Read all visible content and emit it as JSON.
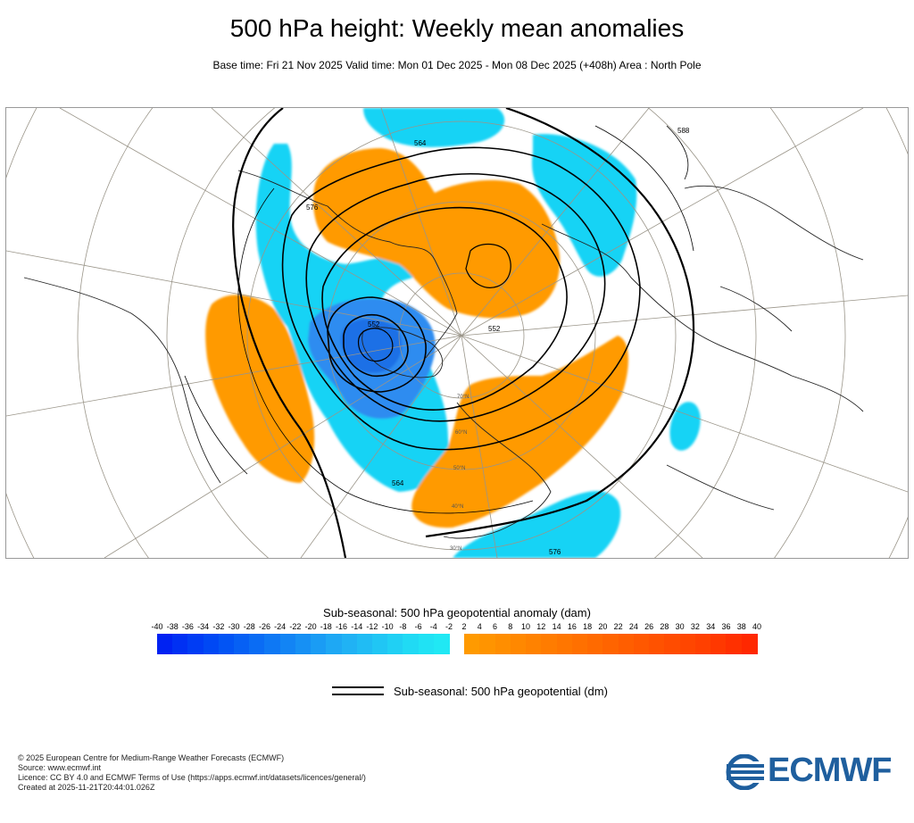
{
  "header": {
    "title": "500 hPa height: Weekly mean anomalies",
    "subtitle": "Base time: Fri 21 Nov 2025 Valid time: Mon 01 Dec 2025 - Mon 08 Dec 2025 (+408h) Area : North Pole"
  },
  "map": {
    "contour_labels": [
      "564",
      "576",
      "588",
      "552",
      "564",
      "576",
      "552"
    ],
    "latitude_labels": [
      "70°N",
      "60°N",
      "50°N",
      "40°N",
      "30°N"
    ],
    "colors": {
      "negative_strong": "#1e6fe6",
      "negative_weak": "#19d3f5",
      "positive_weak": "#ff9a00",
      "positive_strong": "#ee7a10",
      "contour": "#000000",
      "graticule": "#9a9589",
      "coast": "#222222"
    }
  },
  "legend": {
    "colorbar_title": "Sub-seasonal: 500 hPa geopotential anomaly (dam)",
    "ticks": [
      "-40",
      "-38",
      "-36",
      "-34",
      "-32",
      "-30",
      "-28",
      "-26",
      "-24",
      "-22",
      "-20",
      "-18",
      "-16",
      "-14",
      "-12",
      "-10",
      "-8",
      "-6",
      "-4",
      "-2",
      "2",
      "4",
      "6",
      "8",
      "10",
      "12",
      "14",
      "16",
      "18",
      "20",
      "22",
      "24",
      "26",
      "28",
      "30",
      "32",
      "34",
      "36",
      "38",
      "40"
    ],
    "negative_colors": [
      "#0022f2",
      "#0030f3",
      "#003cf4",
      "#0048f4",
      "#0254f4",
      "#0660f4",
      "#0a6cf4",
      "#0e78f4",
      "#1284f4",
      "#1690f4",
      "#1a9cf4",
      "#1ea8f4",
      "#20b2f4",
      "#20bcf4",
      "#20c6f4",
      "#20d0f4",
      "#20daf4",
      "#20e2f4",
      "#20e8f4"
    ],
    "positive_colors": [
      "#ff9a00",
      "#ff9400",
      "#ff8e00",
      "#ff8800",
      "#ff8200",
      "#ff7c00",
      "#ff7600",
      "#ff7000",
      "#ff6a00",
      "#ff6400",
      "#ff5e00",
      "#ff5800",
      "#ff5200",
      "#ff4c00",
      "#ff4600",
      "#ff4000",
      "#ff3800",
      "#ff3000",
      "#ff2800"
    ],
    "line_label": "Sub-seasonal: 500 hPa geopotential (dm)"
  },
  "footer": {
    "lines": [
      "© 2025 European Centre for Medium-Range Weather Forecasts (ECMWF)",
      "Source: www.ecmwf.int",
      "Licence: CC BY 4.0 and ECMWF Terms of Use (https://apps.ecmwf.int/datasets/licences/general/)",
      "Created at 2025-11-21T20:44:01.026Z"
    ],
    "logo_text": "ECMWF",
    "logo_color": "#1f5f9e"
  }
}
